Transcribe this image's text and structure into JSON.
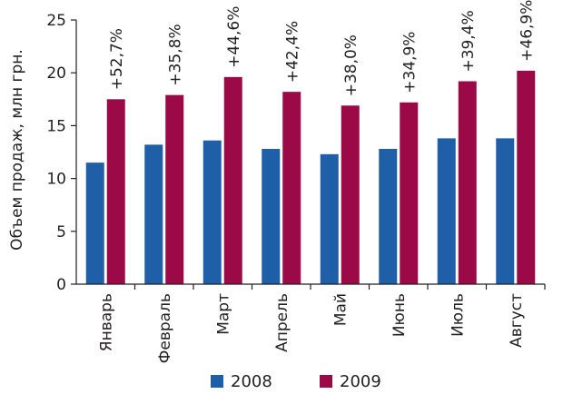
{
  "chart_data": {
    "type": "bar",
    "categories": [
      "Январь",
      "Февраль",
      "Март",
      "Апрель",
      "Май",
      "Июнь",
      "Июль",
      "Август"
    ],
    "series": [
      {
        "name": "2008",
        "color": "#1e5fa8",
        "values": [
          11.5,
          13.2,
          13.6,
          12.8,
          12.3,
          12.8,
          13.8,
          13.8
        ]
      },
      {
        "name": "2009",
        "color": "#9b0a47",
        "values": [
          17.5,
          17.9,
          19.6,
          18.2,
          16.9,
          17.2,
          19.2,
          20.2
        ]
      }
    ],
    "annotations": [
      "+52,7%",
      "+35,8%",
      "+44,6%",
      "+42,4%",
      "+38,0%",
      "+34,9%",
      "+39,4%",
      "+46,9%"
    ],
    "ylabel": "Объем продаж, млн грн.",
    "xlabel": "",
    "ylim": [
      0,
      25
    ],
    "yticks": [
      0,
      5,
      10,
      15,
      20,
      25
    ],
    "grid": false,
    "legend_position": "bottom"
  }
}
